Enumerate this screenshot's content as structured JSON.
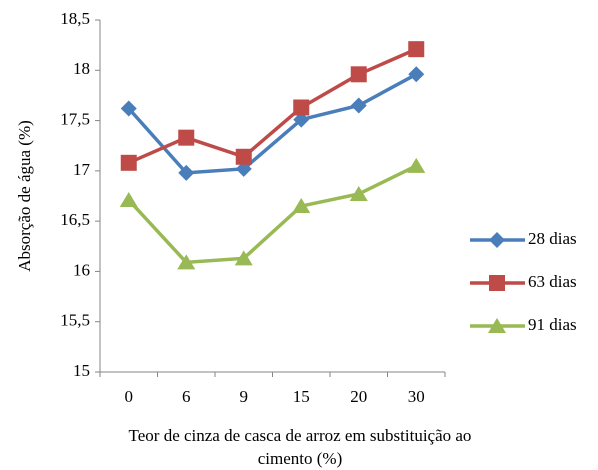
{
  "chart_data": {
    "type": "line",
    "y_label": "Absorção de água (%)",
    "x_label": [
      "Teor de cinza de casca de arroz em substituição ao",
      "cimento (%)"
    ],
    "categories": [
      "0",
      "6",
      "9",
      "15",
      "20",
      "30"
    ],
    "series": [
      {
        "name": "28 dias",
        "color": "#4a7ebb",
        "marker": "diamond",
        "values": [
          17.62,
          16.98,
          17.02,
          17.51,
          17.65,
          17.96
        ]
      },
      {
        "name": "63 dias",
        "color": "#be4b48",
        "marker": "square",
        "values": [
          17.08,
          17.33,
          17.14,
          17.63,
          17.96,
          18.21
        ]
      },
      {
        "name": "91 dias",
        "color": "#98b954",
        "marker": "triangle",
        "values": [
          16.71,
          16.09,
          16.13,
          16.65,
          16.77,
          17.05
        ]
      }
    ],
    "ylim": [
      15,
      18.5
    ],
    "yticks": [
      15,
      {
        "value": 15.5,
        "label": "15,5"
      },
      16,
      {
        "value": 16.5,
        "label": "16,5"
      },
      17,
      {
        "value": 17.5,
        "label": "17,5"
      },
      18,
      {
        "value": 18.5,
        "label": "18,5"
      }
    ],
    "legend": "right",
    "grid": false
  }
}
